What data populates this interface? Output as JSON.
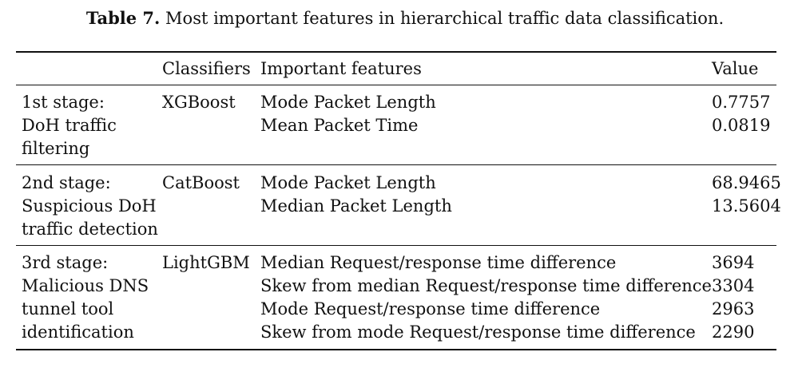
{
  "caption": {
    "label": "Table 7.",
    "text": "Most important features in hierarchical traffic data classification."
  },
  "table": {
    "headers": {
      "stage": "",
      "classifier": "Classifiers",
      "features": "Important features",
      "value": "Value"
    },
    "groups": [
      {
        "stage_lines": [
          "1st stage:",
          "DoH traffic",
          "filtering"
        ],
        "classifier": "XGBoost",
        "rows": [
          {
            "feature": "Mode Packet Length",
            "value": "0.7757"
          },
          {
            "feature": "Mean Packet Time",
            "value": "0.0819"
          }
        ]
      },
      {
        "stage_lines": [
          "2nd stage:",
          "Suspicious DoH",
          "traffic detection"
        ],
        "classifier": "CatBoost",
        "rows": [
          {
            "feature": "Mode Packet Length",
            "value": "68.9465"
          },
          {
            "feature": "Median Packet Length",
            "value": "13.5604"
          }
        ]
      },
      {
        "stage_lines": [
          "3rd stage:",
          "Malicious DNS",
          "tunnel tool",
          "identification"
        ],
        "classifier": "LightGBM",
        "rows": [
          {
            "feature": "Median Request/response time difference",
            "value": "3694"
          },
          {
            "feature": "Skew from median Request/response time difference",
            "value": "3304"
          },
          {
            "feature": "Mode Request/response time difference",
            "value": "2963"
          },
          {
            "feature": "Skew from mode Request/response time difference",
            "value": "2290"
          }
        ]
      }
    ]
  }
}
